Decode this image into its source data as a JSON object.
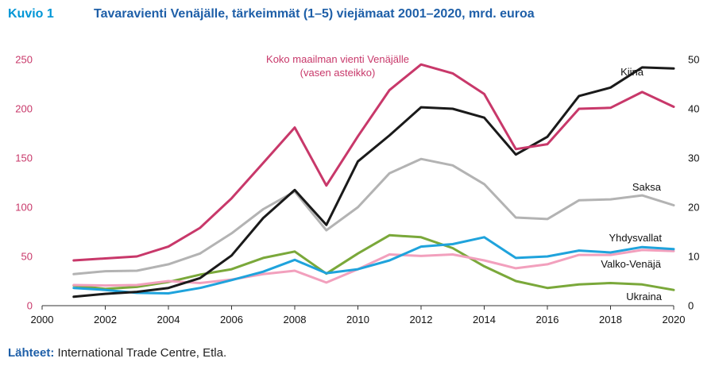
{
  "header": {
    "figure_label": "Kuvio 1",
    "title": "Tavaravienti Venäjälle, tärkeimmät (1–5) viejämaat 2001–2020, mrd. euroa"
  },
  "source": {
    "label": "Lähteet:",
    "text": "International Trade Centre, Etla."
  },
  "chart_data": {
    "type": "line",
    "x_ticks": [
      2000,
      2002,
      2004,
      2006,
      2008,
      2010,
      2012,
      2014,
      2016,
      2018,
      2020
    ],
    "xlim": [
      2000,
      2020
    ],
    "y_left": {
      "ticks": [
        0,
        50,
        100,
        150,
        200,
        250
      ],
      "ylim": [
        0,
        250
      ]
    },
    "y_right": {
      "ticks": [
        0,
        10,
        20,
        30,
        40,
        50
      ],
      "ylim": [
        0,
        50
      ]
    },
    "x": [
      2001,
      2002,
      2003,
      2004,
      2005,
      2006,
      2007,
      2008,
      2009,
      2010,
      2011,
      2012,
      2013,
      2014,
      2015,
      2016,
      2017,
      2018,
      2019,
      2020
    ],
    "series": [
      {
        "key": "world",
        "name": "Koko maailman vienti Venäjälle",
        "name_line2": "(vasen asteikko)",
        "axis": "left",
        "color": "#c8386a",
        "values": [
          46,
          48,
          50,
          60,
          79,
          109,
          145,
          181,
          122,
          172,
          219,
          245,
          236,
          215,
          159,
          164,
          200,
          201,
          217,
          202
        ]
      },
      {
        "key": "china",
        "name": "Kiina",
        "axis": "right",
        "color": "#1a1a1a",
        "values": [
          1.8,
          2.4,
          2.8,
          3.6,
          5.6,
          10.2,
          17.8,
          23.5,
          16.4,
          29.3,
          34.6,
          40.3,
          40.0,
          38.2,
          30.7,
          34.3,
          42.6,
          44.3,
          48.4,
          48.2
        ]
      },
      {
        "key": "germany",
        "name": "Saksa",
        "axis": "right",
        "color": "#b3b3b3",
        "values": [
          6.4,
          7.0,
          7.1,
          8.4,
          10.6,
          14.7,
          19.6,
          23.2,
          15.3,
          20.0,
          26.9,
          29.8,
          28.5,
          24.7,
          17.9,
          17.6,
          21.4,
          21.6,
          22.4,
          20.4
        ]
      },
      {
        "key": "usa",
        "name": "Yhdysvallat",
        "axis": "right",
        "color": "#1fa3dc",
        "values": [
          3.6,
          3.2,
          2.6,
          2.5,
          3.6,
          5.2,
          6.9,
          9.3,
          6.6,
          7.4,
          9.2,
          12.0,
          12.5,
          13.9,
          9.7,
          10.0,
          11.2,
          10.8,
          11.9,
          11.5
        ]
      },
      {
        "key": "belarus",
        "name": "Valko-Venäjä",
        "axis": "right",
        "color": "#f2a0bd",
        "values": [
          4.2,
          4.1,
          4.2,
          5.0,
          4.6,
          5.3,
          6.4,
          7.1,
          4.7,
          7.4,
          10.4,
          10.1,
          10.4,
          9.2,
          7.6,
          8.4,
          10.3,
          10.3,
          11.3,
          11.1
        ]
      },
      {
        "key": "ukraine",
        "name": "Ukraina",
        "axis": "right",
        "color": "#7aa83a",
        "values": [
          4.1,
          3.4,
          3.8,
          4.8,
          6.3,
          7.4,
          9.7,
          11.0,
          6.5,
          10.6,
          14.3,
          13.9,
          11.7,
          8.0,
          5.0,
          3.6,
          4.3,
          4.6,
          4.3,
          3.2
        ]
      }
    ]
  }
}
